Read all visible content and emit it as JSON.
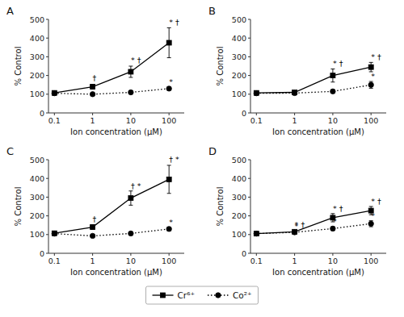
{
  "chart_data": [
    {
      "type": "line",
      "title": "A",
      "x": [
        0.1,
        1,
        10,
        100
      ],
      "log": "x",
      "grid": false,
      "legend": "bottom",
      "xlabel": "Ion concentration (μM)",
      "ylabel": "% Control",
      "xlim": [
        0.07,
        250
      ],
      "xticks": [
        0.1,
        1,
        10,
        100
      ],
      "ylim": [
        0,
        500
      ],
      "yticks": [
        0,
        100,
        200,
        300,
        400,
        500
      ],
      "series": [
        {
          "name": "Cr⁶⁺",
          "color": "#000000",
          "marker": "square",
          "line_style": "solid",
          "values": [
            107,
            140,
            220,
            375
          ],
          "errors": [
            5,
            12,
            30,
            80
          ]
        },
        {
          "name": "Co²⁺",
          "color": "#000000",
          "marker": "circle",
          "line_style": "dotted",
          "values": [
            105,
            100,
            110,
            130
          ],
          "errors": [
            4,
            5,
            6,
            8
          ]
        }
      ],
      "annotations": [
        {
          "x": 1,
          "y": 162,
          "text": "†"
        },
        {
          "x": 10,
          "y": 258,
          "text": "* †"
        },
        {
          "x": 100,
          "y": 462,
          "text": "* †"
        },
        {
          "x": 100,
          "y": 142,
          "text": "*"
        }
      ]
    },
    {
      "type": "line",
      "title": "B",
      "x": [
        0.1,
        1,
        10,
        100
      ],
      "log": "x",
      "grid": false,
      "xlabel": "Ion concentration (μM)",
      "ylabel": "% Control",
      "xlim": [
        0.07,
        250
      ],
      "xticks": [
        0.1,
        1,
        10,
        100
      ],
      "ylim": [
        0,
        500
      ],
      "yticks": [
        0,
        100,
        200,
        300,
        400,
        500
      ],
      "series": [
        {
          "name": "Cr⁶⁺",
          "color": "#000000",
          "marker": "square",
          "line_style": "solid",
          "values": [
            107,
            110,
            200,
            245
          ],
          "errors": [
            5,
            6,
            35,
            25
          ]
        },
        {
          "name": "Co²⁺",
          "color": "#000000",
          "marker": "circle",
          "line_style": "dotted",
          "values": [
            105,
            106,
            115,
            150
          ],
          "errors": [
            4,
            5,
            8,
            18
          ]
        }
      ],
      "annotations": [
        {
          "x": 10,
          "y": 240,
          "text": "* †"
        },
        {
          "x": 100,
          "y": 276,
          "text": "* †"
        },
        {
          "x": 100,
          "y": 173,
          "text": "*"
        }
      ]
    },
    {
      "type": "line",
      "title": "C",
      "x": [
        0.1,
        1,
        10,
        100
      ],
      "log": "x",
      "grid": false,
      "xlabel": "Ion concentration (μM)",
      "ylabel": "% Control",
      "xlim": [
        0.07,
        250
      ],
      "xticks": [
        0.1,
        1,
        10,
        100
      ],
      "ylim": [
        0,
        500
      ],
      "yticks": [
        0,
        100,
        200,
        300,
        400,
        500
      ],
      "series": [
        {
          "name": "Cr⁶⁺",
          "color": "#000000",
          "marker": "square",
          "line_style": "solid",
          "values": [
            107,
            140,
            295,
            395
          ],
          "errors": [
            5,
            12,
            38,
            75
          ]
        },
        {
          "name": "Co²⁺",
          "color": "#000000",
          "marker": "circle",
          "line_style": "dotted",
          "values": [
            105,
            93,
            106,
            130
          ],
          "errors": [
            4,
            5,
            6,
            10
          ]
        }
      ],
      "annotations": [
        {
          "x": 1,
          "y": 160,
          "text": "†"
        },
        {
          "x": 10,
          "y": 338,
          "text": "† *"
        },
        {
          "x": 100,
          "y": 477,
          "text": "† *"
        },
        {
          "x": 100,
          "y": 144,
          "text": "*"
        }
      ]
    },
    {
      "type": "line",
      "title": "D",
      "x": [
        0.1,
        1,
        10,
        100
      ],
      "log": "x",
      "grid": false,
      "xlabel": "Ion concentration (μM)",
      "ylabel": "% Control",
      "xlim": [
        0.07,
        250
      ],
      "xticks": [
        0.1,
        1,
        10,
        100
      ],
      "ylim": [
        0,
        500
      ],
      "yticks": [
        0,
        100,
        200,
        300,
        400,
        500
      ],
      "series": [
        {
          "name": "Cr⁶⁺",
          "color": "#000000",
          "marker": "square",
          "line_style": "solid",
          "values": [
            105,
            115,
            190,
            228
          ],
          "errors": [
            5,
            8,
            22,
            22
          ]
        },
        {
          "name": "Co²⁺",
          "color": "#000000",
          "marker": "circle",
          "line_style": "dotted",
          "values": [
            105,
            112,
            132,
            158
          ],
          "errors": [
            4,
            6,
            10,
            16
          ]
        }
      ],
      "annotations": [
        {
          "x": 1,
          "y": 128,
          "text": "* †"
        },
        {
          "x": 10,
          "y": 216,
          "text": "* †"
        },
        {
          "x": 100,
          "y": 256,
          "text": "* †"
        },
        {
          "x": 1,
          "y": 122,
          "text": "*"
        },
        {
          "x": 10,
          "y": 146,
          "text": "*"
        },
        {
          "x": 100,
          "y": 178,
          "text": "*"
        }
      ]
    }
  ]
}
